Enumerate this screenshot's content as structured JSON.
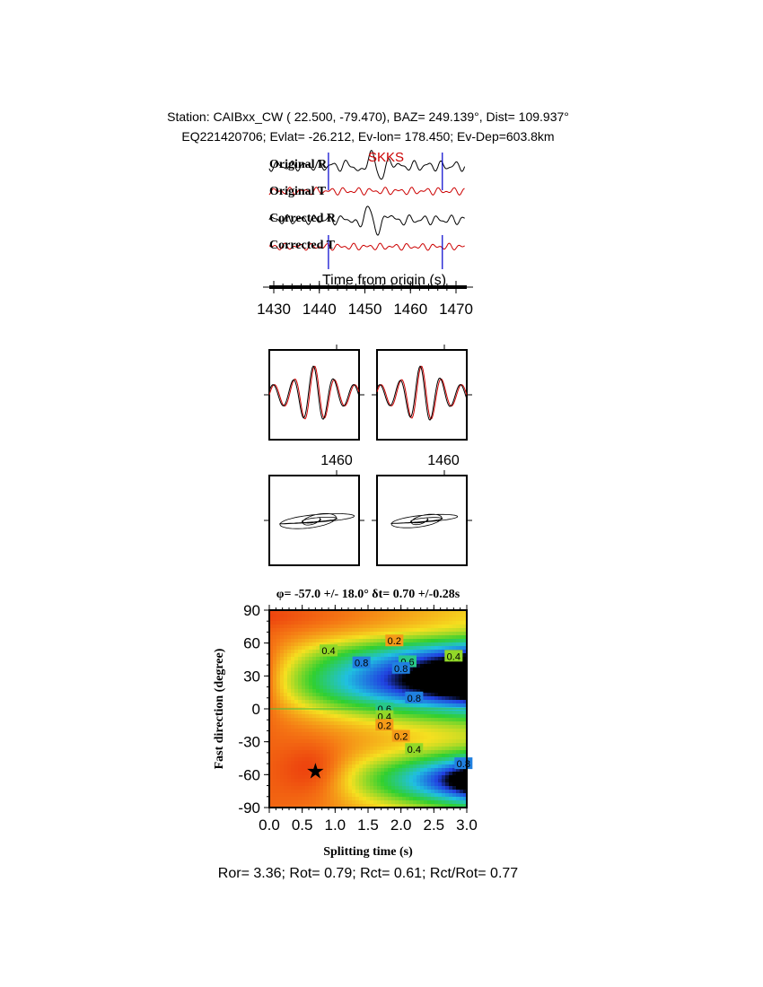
{
  "header": {
    "line1": "Station: CAIBxx_CW (  22.500,  -79.470), BAZ=  249.139°, Dist=  109.937°",
    "line2": "EQ221420706; Evlat= -26.212, Ev-lon= 178.450; Ev-Dep=603.8km"
  },
  "traces": {
    "phase_label": "SKKS",
    "labels": [
      "Original R",
      "Original T",
      "Corrected R",
      "Corrected T"
    ],
    "colors": [
      "#000000",
      "#cc0000",
      "#000000",
      "#cc0000"
    ],
    "window_marker_color": "#0000cc",
    "window_start_s": 1442,
    "window_end_s": 1467,
    "xlabel": "Time from origin (s)",
    "xticks": [
      "1430",
      "1440",
      "1450",
      "1460",
      "1470"
    ],
    "xrange": [
      1429,
      1472
    ]
  },
  "waveform_panels": {
    "tick_label_left": "1460",
    "tick_label_right": "1460"
  },
  "chart_data": {
    "type": "heatmap",
    "title": "φ= -57.0 +/- 18.0° δt= 0.70 +/-0.28s",
    "xlabel": "Splitting time (s)",
    "ylabel": "Fast direction (degree)",
    "xlim": [
      0.0,
      3.0
    ],
    "ylim": [
      -90,
      90
    ],
    "xticks": [
      "0.0",
      "0.5",
      "1.0",
      "1.5",
      "2.0",
      "2.5",
      "3.0"
    ],
    "yticks": [
      "90",
      "60",
      "30",
      "0",
      "-30",
      "-60",
      "-90"
    ],
    "best_fit": {
      "phi": -57.0,
      "phi_err": 18.0,
      "dt": 0.7,
      "dt_err": 0.28
    },
    "contour_labels": [
      "0.2",
      "0.4",
      "0.6",
      "0.8"
    ],
    "colormap": [
      "#e8200a",
      "#f5901a",
      "#f5e020",
      "#30d030",
      "#20c0e0",
      "#2040e0",
      "#000000"
    ]
  },
  "footer": {
    "stats": "Ror= 3.36; Rot= 0.79; Rct= 0.61; Rct/Rot= 0.77"
  }
}
